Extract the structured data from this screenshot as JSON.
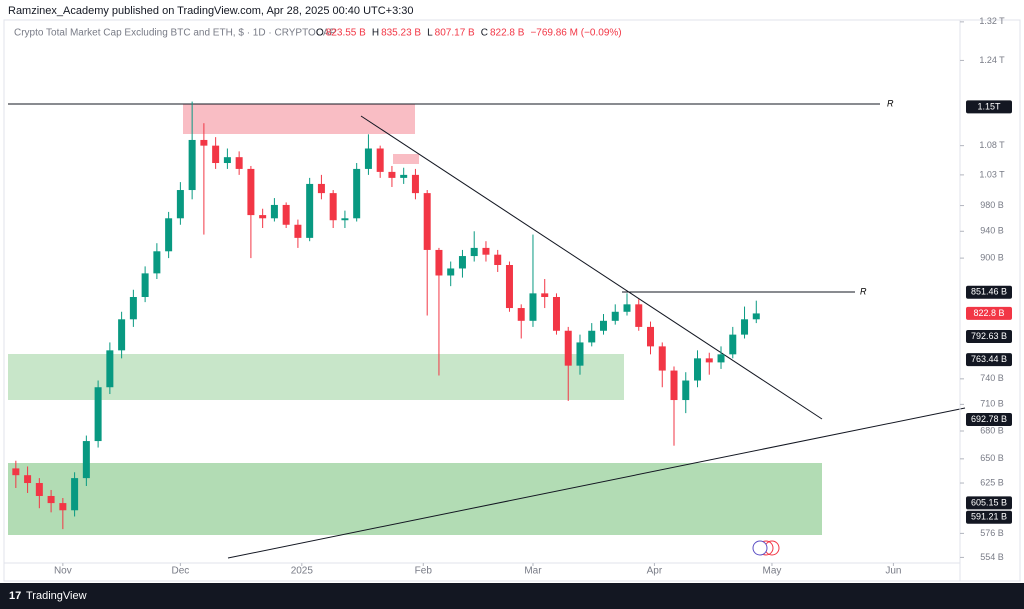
{
  "header": {
    "publisher": "Ramzinex_Academy published on TradingView.com, Apr 28, 2025 00:40 UTC+3:30"
  },
  "footer": {
    "brand": "TradingView"
  },
  "chart_data": {
    "type": "candlestick",
    "title": "Crypto Total Market Cap Excluding BTC and ETH, $ · 1D · CRYPTOCAP",
    "ohlc_legend": [
      {
        "label": "O",
        "value": "823.55 B"
      },
      {
        "label": "H",
        "value": "835.23 B"
      },
      {
        "label": "L",
        "value": "807.17 B"
      },
      {
        "label": "C",
        "value": "822.8 B"
      }
    ],
    "change": "−769.86 M (−0.09%)",
    "up_color": "#089981",
    "down_color": "#f23645",
    "log_scale": true,
    "grid": false,
    "xlim": [
      -2,
      241
    ],
    "xticks": [
      {
        "value": 12,
        "label": "Nov"
      },
      {
        "value": 42,
        "label": "Dec"
      },
      {
        "value": 73,
        "label": "2025"
      },
      {
        "value": 104,
        "label": "Feb"
      },
      {
        "value": 132,
        "label": "Mar"
      },
      {
        "value": 163,
        "label": "Apr"
      },
      {
        "value": 193,
        "label": "May"
      },
      {
        "value": 224,
        "label": "Jun"
      }
    ],
    "ylim": [
      549,
      1350
    ],
    "yticks": [
      {
        "value": 1320,
        "label": "1.32 T"
      },
      {
        "value": 1240,
        "label": "1.24 T"
      },
      {
        "value": 1080,
        "label": "1.08 T"
      },
      {
        "value": 1030,
        "label": "1.03 T"
      },
      {
        "value": 980,
        "label": "980 B"
      },
      {
        "value": 940,
        "label": "940 B"
      },
      {
        "value": 900,
        "label": "900 B"
      },
      {
        "value": 740,
        "label": "740 B"
      },
      {
        "value": 710,
        "label": "710 B"
      },
      {
        "value": 680,
        "label": "680 B"
      },
      {
        "value": 650,
        "label": "650 B"
      },
      {
        "value": 625,
        "label": "625 B"
      },
      {
        "value": 576,
        "label": "576 B"
      },
      {
        "value": 554,
        "label": "554 B"
      }
    ],
    "price_labels": [
      {
        "value": 1150,
        "label": "1.15T"
      },
      {
        "value": 851.46,
        "label": "851.46 B"
      },
      {
        "value": 822.8,
        "label": "822.8 B"
      },
      {
        "value": 792.63,
        "label": "792.63 B"
      },
      {
        "value": 763.44,
        "label": "763.44 B"
      },
      {
        "value": 692.78,
        "label": "692.78 B"
      },
      {
        "value": 605.15,
        "label": "605.15 B"
      },
      {
        "value": 591.21,
        "label": "591.21 B"
      }
    ],
    "annotations": [
      "R",
      "R"
    ],
    "x": [
      0,
      3,
      6,
      9,
      12,
      15,
      18,
      21,
      24,
      27,
      30,
      33,
      36,
      39,
      42,
      45,
      48,
      51,
      54,
      57,
      60,
      63,
      66,
      69,
      72,
      75,
      78,
      81,
      84,
      87,
      90,
      93,
      96,
      99,
      102,
      105,
      108,
      111,
      114,
      117,
      120,
      123,
      126,
      129,
      132,
      135,
      138,
      141,
      144,
      147,
      150,
      153,
      156,
      159,
      162,
      165,
      168,
      171,
      174,
      177,
      180,
      183,
      186,
      189
    ],
    "open": [
      640,
      633,
      625,
      612,
      605,
      598,
      630,
      669,
      730,
      775,
      815,
      845,
      878,
      910,
      960,
      1005,
      1090,
      1080,
      1050,
      1060,
      1040,
      965,
      960,
      981,
      950,
      930,
      1015,
      1000,
      957,
      960,
      1040,
      1075,
      1035,
      1025,
      1030,
      1000,
      912,
      875,
      885,
      903,
      915,
      905,
      890,
      830,
      813,
      850,
      845,
      800,
      756,
      785,
      800,
      813,
      825,
      835,
      805,
      780,
      750,
      715,
      738,
      765,
      760,
      770,
      795,
      815
    ],
    "high": [
      648,
      642,
      630,
      618,
      610,
      636,
      675,
      738,
      785,
      825,
      855,
      888,
      922,
      970,
      1018,
      1160,
      1120,
      1095,
      1075,
      1070,
      1045,
      975,
      992,
      985,
      958,
      1025,
      1030,
      1005,
      972,
      1050,
      1100,
      1080,
      1045,
      1042,
      1040,
      1005,
      915,
      895,
      912,
      940,
      925,
      912,
      895,
      835,
      935,
      870,
      850,
      805,
      795,
      810,
      822,
      835,
      850,
      842,
      812,
      785,
      755,
      748,
      775,
      772,
      780,
      805,
      832,
      840
    ],
    "low": [
      620,
      615,
      600,
      596,
      580,
      592,
      622,
      662,
      722,
      765,
      805,
      838,
      870,
      900,
      950,
      990,
      935,
      1040,
      1040,
      1030,
      900,
      945,
      955,
      945,
      915,
      925,
      990,
      945,
      945,
      955,
      1030,
      1025,
      1010,
      1015,
      990,
      820,
      744,
      860,
      872,
      895,
      895,
      880,
      825,
      790,
      805,
      830,
      795,
      714,
      745,
      780,
      795,
      808,
      820,
      800,
      770,
      730,
      664,
      700,
      730,
      745,
      752,
      765,
      790,
      810
    ],
    "close": [
      633,
      625,
      612,
      605,
      598,
      630,
      669,
      730,
      775,
      815,
      845,
      878,
      910,
      960,
      1005,
      1090,
      1080,
      1050,
      1060,
      1040,
      965,
      960,
      981,
      950,
      930,
      1015,
      1000,
      957,
      960,
      1040,
      1075,
      1035,
      1025,
      1030,
      1000,
      912,
      875,
      885,
      903,
      915,
      905,
      890,
      830,
      813,
      850,
      845,
      800,
      756,
      785,
      800,
      813,
      825,
      835,
      805,
      780,
      750,
      715,
      738,
      765,
      760,
      770,
      795,
      815,
      822.8
    ]
  }
}
